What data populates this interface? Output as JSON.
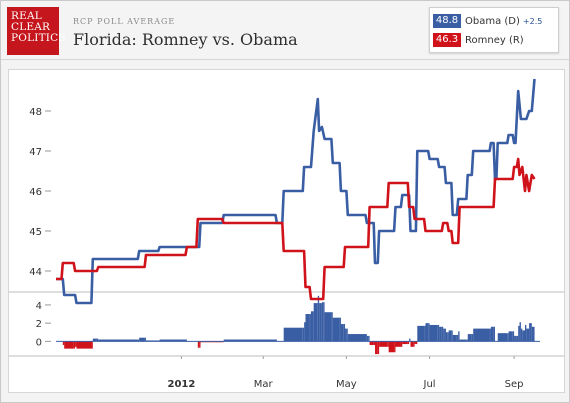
{
  "header": {
    "logo_lines": [
      "REAL",
      "CLEAR",
      "POLITICS"
    ],
    "kicker": "RCP POLL AVERAGE",
    "title": "Florida: Romney vs. Obama"
  },
  "legend": {
    "items": [
      {
        "value": "48.8",
        "name": "Obama (D)",
        "spread": "+2.5",
        "color": "#3a5ea4"
      },
      {
        "value": "46.3",
        "name": "Romney (R)",
        "spread": "",
        "color": "#d0121b"
      }
    ]
  },
  "chart_data": {
    "type": "line",
    "x_is_date": true,
    "xlim": [
      "2011-10-01",
      "2012-09-20"
    ],
    "ylim": [
      43.5,
      48.9
    ],
    "yticks": [
      44,
      45,
      46,
      47,
      48
    ],
    "xticks": [
      {
        "label": "2012",
        "date": "2012-01-01",
        "bold": true
      },
      {
        "label": "Mar",
        "date": "2012-03-01",
        "bold": false
      },
      {
        "label": "May",
        "date": "2012-05-01",
        "bold": false
      },
      {
        "label": "Jul",
        "date": "2012-07-01",
        "bold": false
      },
      {
        "label": "Sep",
        "date": "2012-09-01",
        "bold": false
      }
    ],
    "series": [
      {
        "name": "Obama (D)",
        "color": "#3a5ea4",
        "points": [
          [
            "2011-10-01",
            43.8
          ],
          [
            "2011-10-06",
            43.8
          ],
          [
            "2011-10-07",
            43.4
          ],
          [
            "2011-10-15",
            43.4
          ],
          [
            "2011-10-16",
            43.2
          ],
          [
            "2011-10-27",
            43.2
          ],
          [
            "2011-10-28",
            44.3
          ],
          [
            "2011-11-30",
            44.3
          ],
          [
            "2011-12-01",
            44.5
          ],
          [
            "2011-12-15",
            44.5
          ],
          [
            "2011-12-16",
            44.6
          ],
          [
            "2012-01-14",
            44.6
          ],
          [
            "2012-01-15",
            45.2
          ],
          [
            "2012-01-31",
            45.2
          ],
          [
            "2012-02-01",
            45.4
          ],
          [
            "2012-03-10",
            45.4
          ],
          [
            "2012-03-11",
            45.2
          ],
          [
            "2012-03-15",
            45.2
          ],
          [
            "2012-03-16",
            46.0
          ],
          [
            "2012-03-30",
            46.0
          ],
          [
            "2012-03-31",
            46.6
          ],
          [
            "2012-04-05",
            46.6
          ],
          [
            "2012-04-07",
            47.5
          ],
          [
            "2012-04-10",
            48.3
          ],
          [
            "2012-04-11",
            47.5
          ],
          [
            "2012-04-13",
            47.6
          ],
          [
            "2012-04-15",
            47.3
          ],
          [
            "2012-04-20",
            47.3
          ],
          [
            "2012-04-21",
            46.7
          ],
          [
            "2012-04-26",
            46.7
          ],
          [
            "2012-04-27",
            46.0
          ],
          [
            "2012-05-01",
            46.0
          ],
          [
            "2012-05-02",
            45.4
          ],
          [
            "2012-05-15",
            45.4
          ],
          [
            "2012-05-16",
            45.2
          ],
          [
            "2012-05-21",
            45.2
          ],
          [
            "2012-05-22",
            44.2
          ],
          [
            "2012-05-24",
            44.2
          ],
          [
            "2012-05-25",
            45.0
          ],
          [
            "2012-06-05",
            45.0
          ],
          [
            "2012-06-06",
            45.6
          ],
          [
            "2012-06-10",
            45.6
          ],
          [
            "2012-06-11",
            45.9
          ],
          [
            "2012-06-16",
            45.9
          ],
          [
            "2012-06-17",
            45.0
          ],
          [
            "2012-06-21",
            45.0
          ],
          [
            "2012-06-22",
            47.0
          ],
          [
            "2012-06-30",
            47.0
          ],
          [
            "2012-07-01",
            46.8
          ],
          [
            "2012-07-07",
            46.8
          ],
          [
            "2012-07-08",
            46.6
          ],
          [
            "2012-07-12",
            46.6
          ],
          [
            "2012-07-13",
            46.2
          ],
          [
            "2012-07-17",
            46.2
          ],
          [
            "2012-07-18",
            45.4
          ],
          [
            "2012-07-21",
            45.4
          ],
          [
            "2012-07-22",
            45.8
          ],
          [
            "2012-07-28",
            45.8
          ],
          [
            "2012-07-29",
            46.4
          ],
          [
            "2012-08-01",
            46.4
          ],
          [
            "2012-08-02",
            47.0
          ],
          [
            "2012-08-14",
            47.0
          ],
          [
            "2012-08-15",
            47.2
          ],
          [
            "2012-08-17",
            47.2
          ],
          [
            "2012-08-18",
            46.3
          ],
          [
            "2012-08-19",
            46.3
          ],
          [
            "2012-08-20",
            47.2
          ],
          [
            "2012-08-27",
            47.2
          ],
          [
            "2012-08-28",
            47.4
          ],
          [
            "2012-08-31",
            47.4
          ],
          [
            "2012-09-01",
            47.2
          ],
          [
            "2012-09-02",
            47.2
          ],
          [
            "2012-09-04",
            48.5
          ],
          [
            "2012-09-06",
            47.8
          ],
          [
            "2012-09-10",
            47.8
          ],
          [
            "2012-09-12",
            48.0
          ],
          [
            "2012-09-14",
            48.0
          ],
          [
            "2012-09-16",
            48.8
          ]
        ]
      },
      {
        "name": "Romney (R)",
        "color": "#d0121b",
        "points": [
          [
            "2011-10-01",
            43.8
          ],
          [
            "2011-10-05",
            43.8
          ],
          [
            "2011-10-06",
            44.2
          ],
          [
            "2011-10-14",
            44.2
          ],
          [
            "2011-10-15",
            44.0
          ],
          [
            "2011-10-31",
            44.0
          ],
          [
            "2011-11-01",
            44.1
          ],
          [
            "2011-12-05",
            44.1
          ],
          [
            "2011-12-06",
            44.4
          ],
          [
            "2012-01-04",
            44.4
          ],
          [
            "2012-01-05",
            44.6
          ],
          [
            "2012-01-12",
            44.6
          ],
          [
            "2012-01-13",
            45.3
          ],
          [
            "2012-01-31",
            45.3
          ],
          [
            "2012-02-01",
            45.2
          ],
          [
            "2012-03-15",
            45.2
          ],
          [
            "2012-03-16",
            44.5
          ],
          [
            "2012-03-31",
            44.5
          ],
          [
            "2012-04-01",
            43.6
          ],
          [
            "2012-04-04",
            43.6
          ],
          [
            "2012-04-05",
            43.3
          ],
          [
            "2012-04-14",
            43.3
          ],
          [
            "2012-04-15",
            44.1
          ],
          [
            "2012-04-29",
            44.1
          ],
          [
            "2012-04-30",
            44.6
          ],
          [
            "2012-05-17",
            44.6
          ],
          [
            "2012-05-18",
            45.6
          ],
          [
            "2012-05-31",
            45.6
          ],
          [
            "2012-06-01",
            46.2
          ],
          [
            "2012-06-15",
            46.2
          ],
          [
            "2012-06-16",
            45.6
          ],
          [
            "2012-06-19",
            45.6
          ],
          [
            "2012-06-20",
            45.3
          ],
          [
            "2012-06-27",
            45.3
          ],
          [
            "2012-06-28",
            45.0
          ],
          [
            "2012-07-10",
            45.0
          ],
          [
            "2012-07-11",
            45.2
          ],
          [
            "2012-07-14",
            45.2
          ],
          [
            "2012-07-15",
            45.0
          ],
          [
            "2012-07-17",
            45.0
          ],
          [
            "2012-07-18",
            44.7
          ],
          [
            "2012-07-22",
            44.7
          ],
          [
            "2012-07-23",
            45.6
          ],
          [
            "2012-08-17",
            45.6
          ],
          [
            "2012-08-18",
            46.3
          ],
          [
            "2012-08-31",
            46.3
          ],
          [
            "2012-09-01",
            46.6
          ],
          [
            "2012-09-03",
            46.6
          ],
          [
            "2012-09-04",
            46.8
          ],
          [
            "2012-09-05",
            46.4
          ],
          [
            "2012-09-07",
            46.6
          ],
          [
            "2012-09-09",
            46.0
          ],
          [
            "2012-09-10",
            46.4
          ],
          [
            "2012-09-12",
            46.0
          ],
          [
            "2012-09-14",
            46.4
          ],
          [
            "2012-09-16",
            46.3
          ]
        ]
      }
    ],
    "spread": {
      "ylim": [
        -1.5,
        5.2
      ],
      "yticks": [
        0,
        2,
        4
      ]
    }
  }
}
